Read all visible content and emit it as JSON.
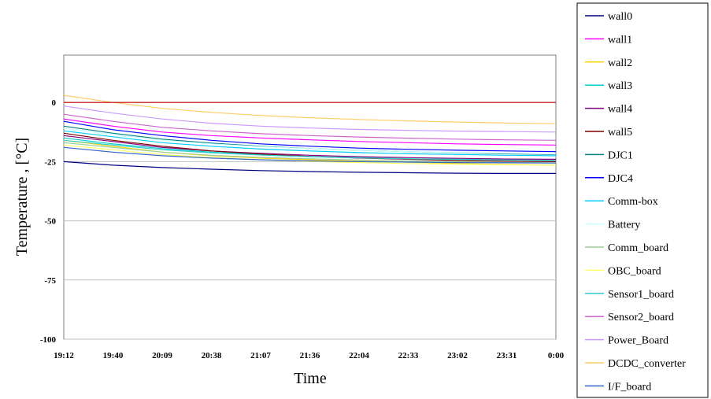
{
  "chart_data": {
    "type": "line",
    "xlabel": "Time",
    "ylabel": "Temperature , [°C]",
    "x_ticks": [
      "19:12",
      "19:40",
      "20:09",
      "20:38",
      "21:07",
      "21:36",
      "22:04",
      "22:33",
      "23:02",
      "23:31",
      "0:00"
    ],
    "y_ticks": [
      0,
      -25,
      -50,
      -75,
      -100
    ],
    "ylim": [
      -100,
      20
    ],
    "grid": "horizontal",
    "legend_position": "right",
    "series": [
      {
        "name": "wall0",
        "color": "#000080",
        "values": [
          -25,
          -26.5,
          -27.5,
          -28.2,
          -28.8,
          -29.2,
          -29.5,
          -29.7,
          -29.9,
          -30,
          -30
        ]
      },
      {
        "name": "wall1",
        "color": "#FF00FF",
        "values": [
          -7,
          -10,
          -12.5,
          -14,
          -15,
          -15.8,
          -16.5,
          -17,
          -17.5,
          -17.8,
          -18
        ]
      },
      {
        "name": "wall2",
        "color": "#FFD700",
        "values": [
          -16,
          -18.5,
          -21,
          -22.5,
          -23.5,
          -24.2,
          -24.8,
          -25.2,
          -25.8,
          -26.2,
          -26.5
        ]
      },
      {
        "name": "wall3",
        "color": "#00CCCC",
        "values": [
          -15,
          -17.5,
          -19.5,
          -21,
          -22,
          -22.8,
          -23.3,
          -23.8,
          -24,
          -24.2,
          -24.5
        ]
      },
      {
        "name": "wall4",
        "color": "#800080",
        "values": [
          -14,
          -16.5,
          -19,
          -20.5,
          -21.5,
          -22.3,
          -22.9,
          -23.3,
          -23.6,
          -23.9,
          -24
        ]
      },
      {
        "name": "wall5",
        "color": "#800000",
        "values": [
          -13,
          -16,
          -18.5,
          -20.5,
          -21.8,
          -22.8,
          -23.5,
          -24,
          -24.5,
          -24.8,
          -25
        ]
      },
      {
        "name": "DJC1",
        "color": "#008080",
        "values": [
          -10,
          -13,
          -15.5,
          -17.2,
          -18.5,
          -19.5,
          -20.2,
          -20.8,
          -21.3,
          -21.7,
          -22
        ]
      },
      {
        "name": "DJC4",
        "color": "#0000FF",
        "values": [
          -8,
          -11.5,
          -14,
          -16,
          -17.5,
          -18.5,
          -19.3,
          -19.8,
          -20.2,
          -20.5,
          -20.8
        ]
      },
      {
        "name": "Comm-box",
        "color": "#00CCFF",
        "values": [
          -12,
          -14.5,
          -17,
          -18.5,
          -19.7,
          -20.5,
          -21.2,
          -21.7,
          -22,
          -22.3,
          -22.5
        ]
      },
      {
        "name": "Battery",
        "color": "#CCFFFF",
        "values": [
          -11,
          -13.5,
          -16,
          -17.5,
          -18.7,
          -19.5,
          -20.2,
          -20.8,
          -21.2,
          -21.5,
          -21.8
        ]
      },
      {
        "name": "Comm_board",
        "color": "#99CC99",
        "values": [
          -17,
          -19,
          -21,
          -22.3,
          -23.2,
          -23.8,
          -24.3,
          -24.7,
          -25,
          -25.3,
          -25.5
        ]
      },
      {
        "name": "OBC_board",
        "color": "#FFFF66",
        "values": [
          -18,
          -20,
          -22,
          -23.3,
          -24.2,
          -24.9,
          -25.4,
          -25.8,
          -26.1,
          -26.3,
          -26.5
        ]
      },
      {
        "name": "Sensor1_board",
        "color": "#33CCCC",
        "values": [
          -16,
          -18,
          -20,
          -21.3,
          -22.2,
          -22.9,
          -23.4,
          -23.8,
          -24.1,
          -24.3,
          -24.5
        ]
      },
      {
        "name": "Sensor2_board",
        "color": "#CC66CC",
        "values": [
          -5,
          -8,
          -10.5,
          -12,
          -13.2,
          -14,
          -14.6,
          -15.1,
          -15.5,
          -15.8,
          -16
        ]
      },
      {
        "name": "Power_Board",
        "color": "#CC99FF",
        "values": [
          -1.5,
          -4.5,
          -7,
          -8.8,
          -10,
          -10.8,
          -11.4,
          -11.8,
          -12.1,
          -12.3,
          -12.5
        ]
      },
      {
        "name": "DCDC_converter",
        "color": "#FFCC66",
        "values": [
          3,
          0,
          -2.5,
          -4.2,
          -5.5,
          -6.5,
          -7.2,
          -7.8,
          -8.3,
          -8.7,
          -9
        ]
      },
      {
        "name": "I/F_board",
        "color": "#3366CC",
        "values": [
          -19,
          -21,
          -22.5,
          -23.5,
          -24.2,
          -24.7,
          -25,
          -25.2,
          -25.4,
          -25.5,
          -25.6
        ]
      },
      {
        "color": "#CC0000",
        "values": [
          0,
          0,
          0,
          0,
          0,
          0,
          0,
          0,
          0,
          0,
          0
        ]
      }
    ]
  }
}
